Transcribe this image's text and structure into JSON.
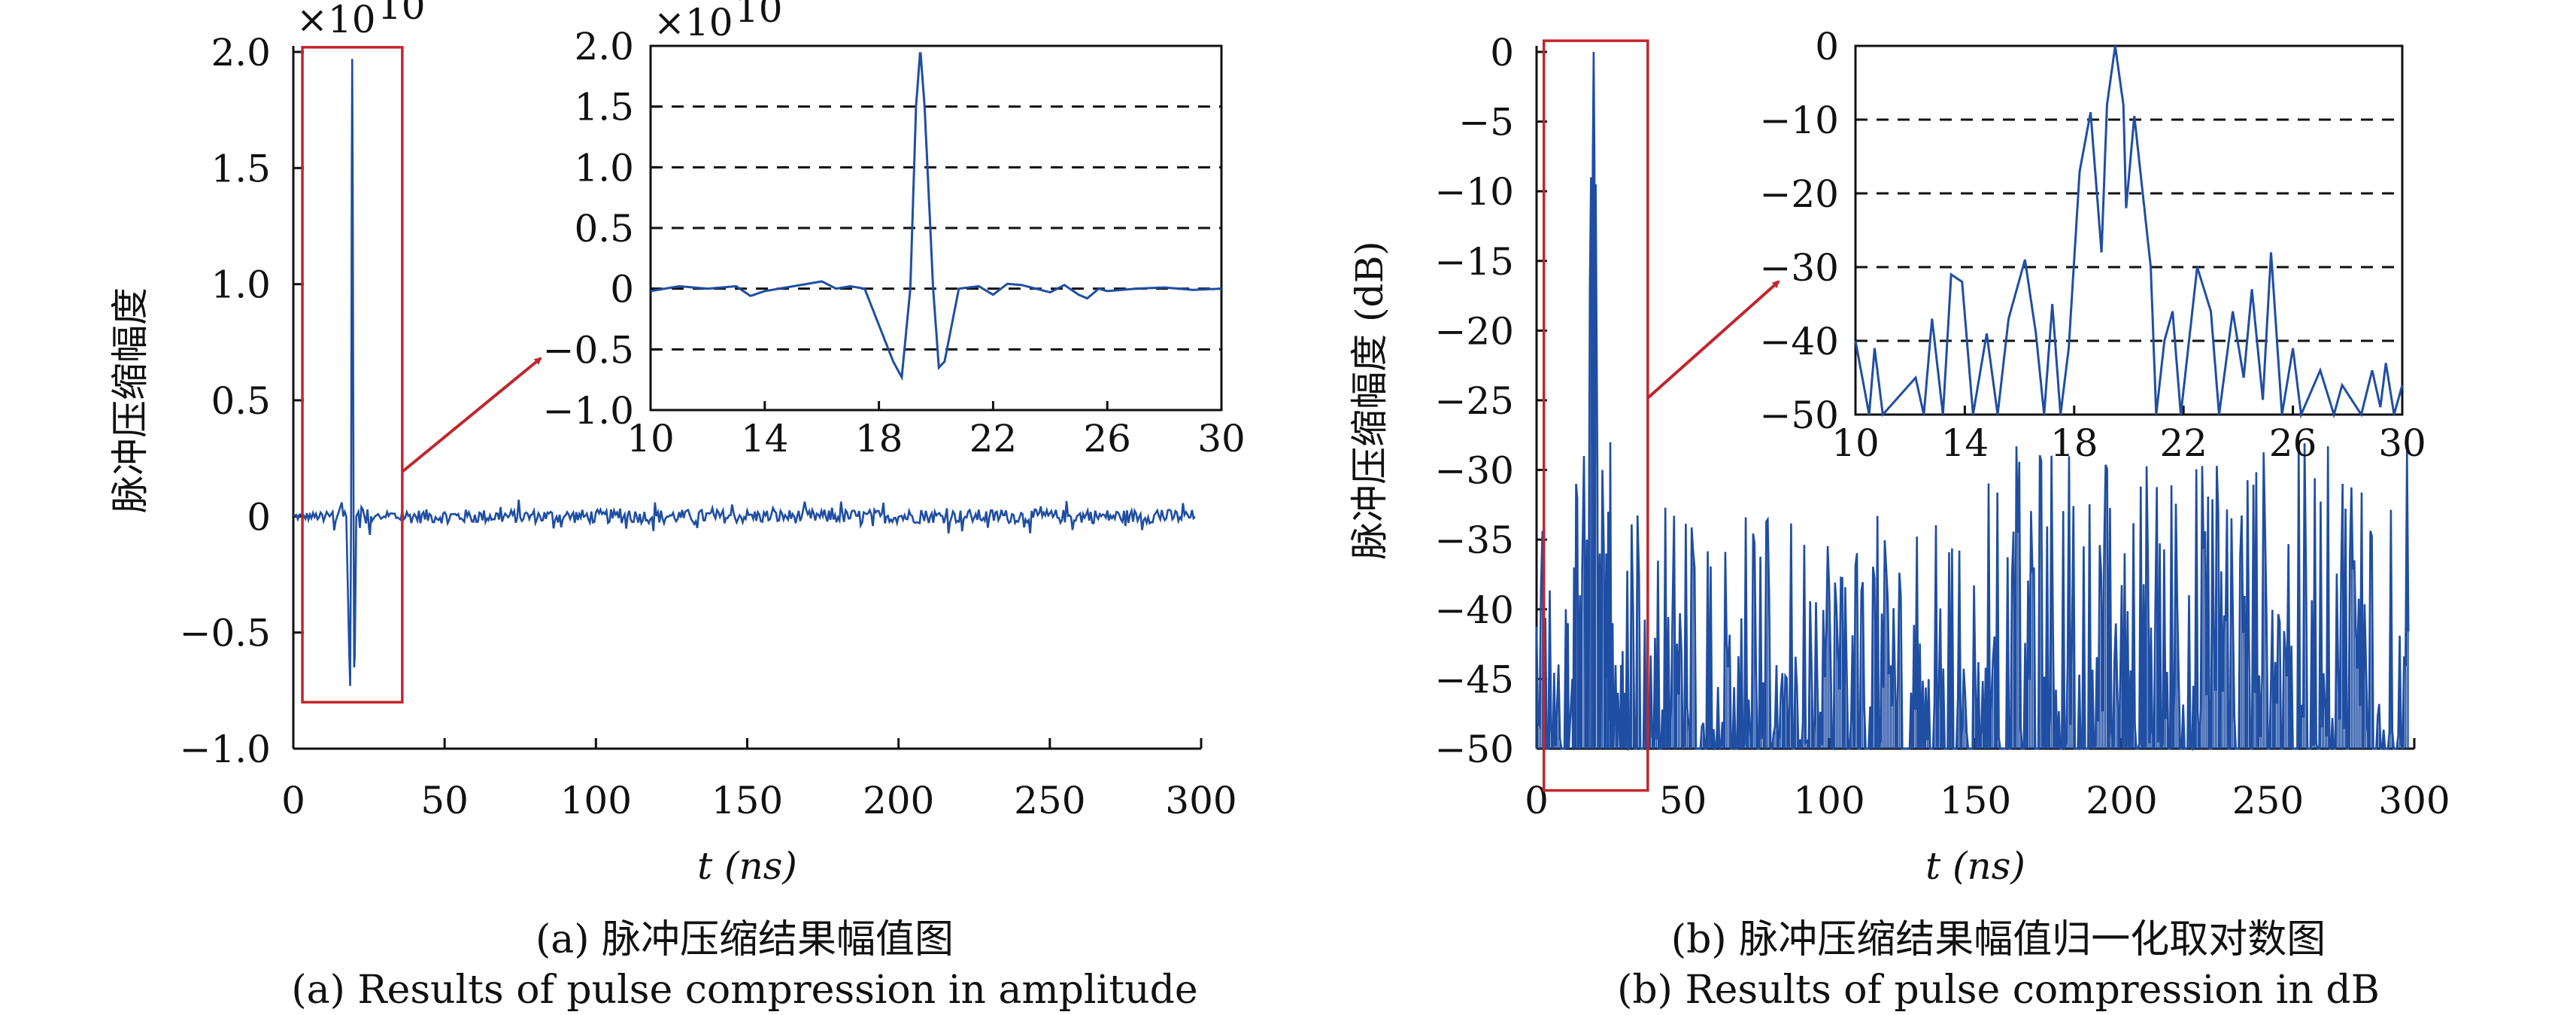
{
  "chart_data": [
    {
      "type": "line",
      "id": "a",
      "caption_cn": "(a) 脉冲压缩结果幅值图",
      "caption_en": "(a) Results of pulse compression in amplitude",
      "xlabel": "t (ns)",
      "ylabel": "脉冲压缩幅度",
      "y_multiplier": "×10",
      "y_exponent": "10",
      "xlim": [
        0,
        300
      ],
      "ylim": [
        -1.0,
        2.0
      ],
      "xticks": [
        "0",
        "50",
        "100",
        "150",
        "200",
        "250",
        "300"
      ],
      "yticks": [
        "−1.0",
        "−0.5",
        "0",
        "0.5",
        "1.0",
        "1.5",
        "2.0"
      ],
      "series_color": "#1f4ea3",
      "highlight_box": {
        "x_range": [
          3,
          36
        ],
        "y_range": [
          -0.8,
          2.02
        ],
        "color": "#c0272d"
      },
      "noise_amplitude": 0.03,
      "pulse": {
        "t": [
          10,
          11,
          12,
          13,
          13.5,
          14,
          15,
          16,
          16.5,
          17,
          17.5,
          18,
          18.5,
          18.8,
          19.1,
          19.3,
          19.45,
          19.6,
          19.9,
          20.1,
          20.3,
          20.8,
          21.5,
          22,
          22.5,
          23,
          24,
          24.5,
          25,
          25.3,
          25.7,
          26,
          27,
          28,
          29,
          30
        ],
        "y": [
          -0.02,
          0.02,
          0,
          0.02,
          -0.06,
          -0.02,
          0.02,
          0.06,
          0,
          0.02,
          0,
          -0.3,
          -0.6,
          -0.73,
          0,
          1.5,
          1.97,
          1.5,
          0,
          -0.65,
          -0.6,
          0,
          0.02,
          -0.05,
          0.04,
          0.03,
          -0.03,
          0.03,
          -0.05,
          -0.08,
          0,
          -0.02,
          0,
          0.01,
          -0.01,
          0
        ]
      },
      "inset": {
        "xlim": [
          10,
          30
        ],
        "ylim": [
          -1.0,
          2.0
        ],
        "xticks": [
          "10",
          "14",
          "18",
          "22",
          "26",
          "30"
        ],
        "yticks": [
          "−1.0",
          "−0.5",
          "0",
          "0.5",
          "1.0",
          "1.5",
          "2.0"
        ],
        "y_multiplier": "×10",
        "y_exponent": "10",
        "gridlines_y": [
          -0.5,
          0,
          0.5,
          1.0,
          1.5
        ]
      }
    },
    {
      "type": "line",
      "id": "b",
      "caption_cn": "(b) 脉冲压缩结果幅值归一化取对数图",
      "caption_en": "(b) Results of pulse compression in dB",
      "xlabel": "t (ns)",
      "ylabel": "脉冲压缩幅度 (dB)",
      "xlim": [
        0,
        300
      ],
      "ylim": [
        -50,
        0
      ],
      "xticks": [
        "0",
        "50",
        "100",
        "150",
        "200",
        "250",
        "300"
      ],
      "yticks": [
        "−50",
        "−45",
        "−40",
        "−35",
        "−30",
        "−25",
        "−20",
        "−15",
        "−10",
        "−5",
        "0"
      ],
      "series_color": "#1f4ea3",
      "highlight_box": {
        "x_range": [
          2.5,
          38
        ],
        "y_range": [
          -53,
          0.8
        ],
        "color": "#c0272d"
      },
      "noise_floor_db": [
        -50,
        -30
      ],
      "pulse": {
        "t": [
          10,
          10.5,
          10.7,
          11,
          12.2,
          12.5,
          12.8,
          13.2,
          13.5,
          13.9,
          14.3,
          14.8,
          15.2,
          15.6,
          16.2,
          16.6,
          16.9,
          17.2,
          17.5,
          17.8,
          18.2,
          18.6,
          19.0,
          19.2,
          19.5,
          19.8,
          19.9,
          20.2,
          20.8,
          21.0,
          21.3,
          21.6,
          21.9,
          22.5,
          23.0,
          23.3,
          23.8,
          24.2,
          24.5,
          24.9,
          25.2,
          25.6,
          26.0,
          26.3,
          27,
          27.5,
          27.8,
          28.5,
          28.9,
          29.2,
          29.4,
          29.7,
          30
        ],
        "y": [
          -40,
          -50,
          -41,
          -50,
          -45,
          -50,
          -37,
          -50,
          -31,
          -32,
          -50,
          -39,
          -50,
          -37,
          -29,
          -39,
          -50,
          -35,
          -50,
          -41,
          -17,
          -9,
          -28,
          -8,
          0,
          -8,
          -22,
          -9.5,
          -30,
          -50,
          -40,
          -36,
          -50,
          -30,
          -36,
          -50,
          -36,
          -45,
          -33,
          -48,
          -28,
          -50,
          -41,
          -50,
          -44,
          -50,
          -46,
          -50,
          -44,
          -49,
          -43,
          -50,
          -46
        ]
      },
      "inset": {
        "xlim": [
          10,
          30
        ],
        "ylim": [
          -50,
          0
        ],
        "xticks": [
          "10",
          "14",
          "18",
          "22",
          "26",
          "30"
        ],
        "yticks": [
          "−50",
          "−40",
          "−30",
          "−20",
          "−10",
          "0"
        ],
        "gridlines_y": [
          -40,
          -30,
          -20,
          -10
        ]
      }
    }
  ]
}
